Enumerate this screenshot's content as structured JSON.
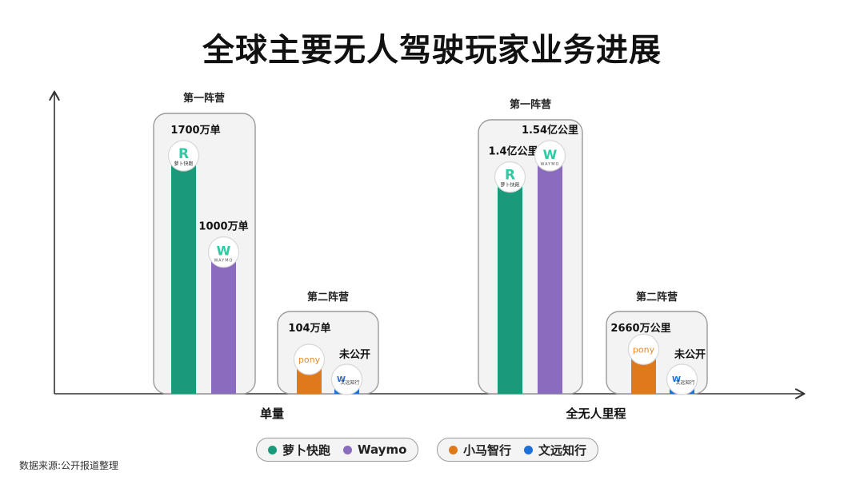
{
  "title": "全球主要无人驾驶玩家业务进展",
  "source": "数据来源:公开报道整理",
  "colors": {
    "luobo": "#1a9a7a",
    "waymo": "#8a6bbd",
    "pony": "#df7a1c",
    "weride": "#1f6fd8"
  },
  "legend": {
    "group1": [
      {
        "label": "萝卜快跑",
        "color": "#1a9a7a"
      },
      {
        "label": "Waymo",
        "color": "#8a6bbd"
      }
    ],
    "group2": [
      {
        "label": "小马智行",
        "color": "#df7a1c"
      },
      {
        "label": "文远知行",
        "color": "#1f6fd8"
      }
    ]
  },
  "logos": {
    "luobo_icon": "R",
    "luobo_sub": "萝卜快跑",
    "waymo_icon": "W",
    "waymo_sub": "WAYMO",
    "pony_icon": "pony",
    "weride_icon": "W",
    "weride_sub": "文远知行"
  },
  "chart_data": [
    {
      "type": "bar",
      "category_label": "单量",
      "groups": [
        {
          "label": "第一阵营",
          "players": [
            {
              "name": "萝卜快跑",
              "value": 1700,
              "value_label": "1700万单"
            },
            {
              "name": "Waymo",
              "value": 1000,
              "value_label": "1000万单"
            }
          ]
        },
        {
          "label": "第二阵营",
          "players": [
            {
              "name": "小马智行",
              "value": 104,
              "value_label": "104万单"
            },
            {
              "name": "文远知行",
              "value": null,
              "value_label": "未公开"
            }
          ]
        }
      ]
    },
    {
      "type": "bar",
      "category_label": "全无人里程",
      "groups": [
        {
          "label": "第一阵营",
          "players": [
            {
              "name": "萝卜快跑",
              "value": 14000,
              "value_label": "1.4亿公里"
            },
            {
              "name": "Waymo",
              "value": 15400,
              "value_label": "1.54亿公里"
            }
          ]
        },
        {
          "label": "第二阵营",
          "players": [
            {
              "name": "小马智行",
              "value": 2660,
              "value_label": "2660万公里"
            },
            {
              "name": "文远知行",
              "value": null,
              "value_label": "未公开"
            }
          ]
        }
      ]
    }
  ]
}
